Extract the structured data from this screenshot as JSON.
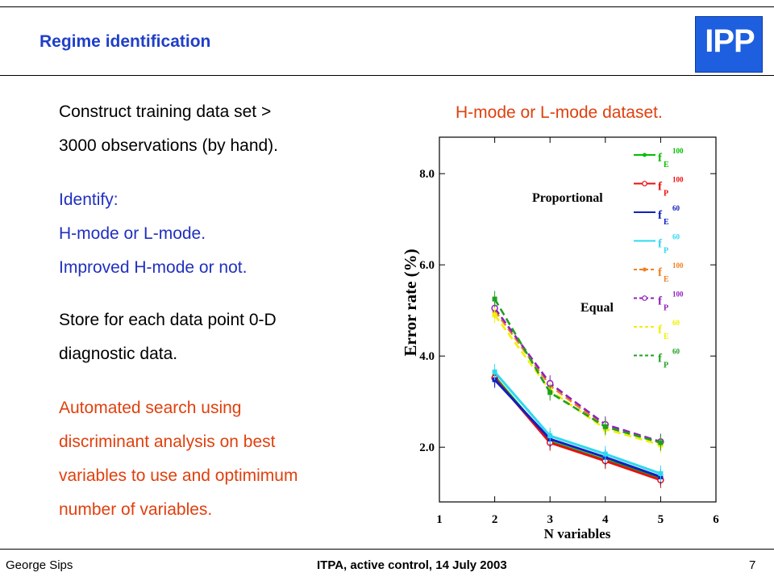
{
  "slide": {
    "title": "Regime identification",
    "logo_text": "IPP",
    "body": {
      "p1_line1": "Construct training data set >",
      "p1_line2": "3000 observations (by hand).",
      "p2_line1": "Identify:",
      "p2_line2": "H-mode or L-mode.",
      "p2_line3": "Improved H-mode or not.",
      "p3_line1": "Store for each data point 0-D",
      "p3_line2": "diagnostic data.",
      "p4_line1": "Automated search using",
      "p4_line2": "discriminant analysis on best",
      "p4_line3": "variables to use and optimimum",
      "p4_line4": "number of variables."
    },
    "chart_heading": "H-mode or L-mode dataset.",
    "footer": {
      "left": "George Sips",
      "center": "ITPA, active control, 14 July 2003",
      "right": "7"
    },
    "colors": {
      "title": "#1f3fc8",
      "highlight": "#e0400e",
      "body_blue": "#2030c0",
      "logo_bg": "#1e5fe0"
    }
  },
  "chart_data": {
    "type": "line",
    "xlabel": "N variables",
    "ylabel": "Error rate (%)",
    "xlim": [
      1,
      6
    ],
    "ylim": [
      0.8,
      8.8
    ],
    "xticks": [
      "1",
      "2",
      "3",
      "4",
      "5",
      "6"
    ],
    "yticks": [
      "2.0",
      "4.0",
      "6.0",
      "8.0"
    ],
    "grid": false,
    "legend_position": "right",
    "annotations": [
      "Proportional",
      "Equal"
    ],
    "x": [
      2,
      3,
      4,
      5
    ],
    "series": [
      {
        "name": "f_E^100",
        "group": "Proportional",
        "color": "#00c000",
        "dash": false,
        "marker": "dot",
        "values": [
          3.55,
          2.12,
          1.72,
          1.32
        ]
      },
      {
        "name": "f_P^100",
        "group": "Proportional",
        "color": "#e81010",
        "dash": false,
        "marker": "circle",
        "values": [
          3.52,
          2.1,
          1.7,
          1.28
        ]
      },
      {
        "name": "f_E^60",
        "group": "Proportional",
        "color": "#1020c0",
        "dash": false,
        "marker": "none",
        "values": [
          3.48,
          2.18,
          1.78,
          1.35
        ]
      },
      {
        "name": "f_P^60",
        "group": "Proportional",
        "color": "#30d8f0",
        "dash": false,
        "marker": "none",
        "values": [
          3.65,
          2.25,
          1.85,
          1.42
        ]
      },
      {
        "name": "f_E^100",
        "group": "Equal",
        "color": "#f08020",
        "dash": true,
        "marker": "dot",
        "values": [
          5.0,
          3.35,
          2.45,
          2.1
        ]
      },
      {
        "name": "f_P^100",
        "group": "Equal",
        "color": "#9020c0",
        "dash": true,
        "marker": "circle",
        "values": [
          5.05,
          3.4,
          2.5,
          2.12
        ]
      },
      {
        "name": "f_E^60",
        "group": "Equal",
        "color": "#f0f000",
        "dash": true,
        "marker": "none",
        "values": [
          4.9,
          3.25,
          2.4,
          2.05
        ]
      },
      {
        "name": "f_P^60",
        "group": "Equal",
        "color": "#20a020",
        "dash": true,
        "marker": "none",
        "values": [
          5.25,
          3.2,
          2.45,
          2.1
        ]
      }
    ],
    "legend_entries": [
      {
        "base": "f",
        "sub": "E",
        "sup": "100",
        "color": "#00c000",
        "dash": false,
        "marker": "dot"
      },
      {
        "base": "f",
        "sub": "P",
        "sup": "100",
        "color": "#e81010",
        "dash": false,
        "marker": "circle"
      },
      {
        "base": "f",
        "sub": "E",
        "sup": "60",
        "color": "#1020c0",
        "dash": false,
        "marker": "none"
      },
      {
        "base": "f",
        "sub": "P",
        "sup": "60",
        "color": "#30d8f0",
        "dash": false,
        "marker": "none"
      },
      {
        "base": "f",
        "sub": "E",
        "sup": "100",
        "color": "#f08020",
        "dash": true,
        "marker": "dot"
      },
      {
        "base": "f",
        "sub": "P",
        "sup": "100",
        "color": "#9020c0",
        "dash": true,
        "marker": "circle"
      },
      {
        "base": "f",
        "sub": "E",
        "sup": "60",
        "color": "#f0f000",
        "dash": true,
        "marker": "none"
      },
      {
        "base": "f",
        "sub": "P",
        "sup": "60",
        "color": "#20a020",
        "dash": true,
        "marker": "none"
      }
    ]
  }
}
